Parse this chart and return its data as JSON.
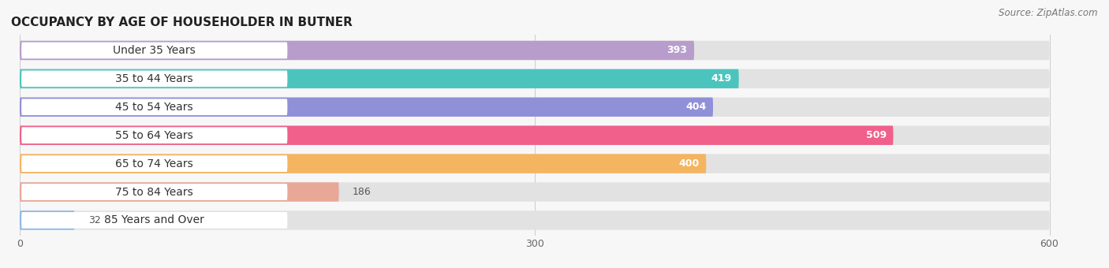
{
  "title": "OCCUPANCY BY AGE OF HOUSEHOLDER IN BUTNER",
  "source": "Source: ZipAtlas.com",
  "categories": [
    "Under 35 Years",
    "35 to 44 Years",
    "45 to 54 Years",
    "55 to 64 Years",
    "65 to 74 Years",
    "75 to 84 Years",
    "85 Years and Over"
  ],
  "values": [
    393,
    419,
    404,
    509,
    400,
    186,
    32
  ],
  "bar_colors": [
    "#b89dcc",
    "#4cc4be",
    "#9090d8",
    "#f0608a",
    "#f5b460",
    "#e8a898",
    "#90b8e8"
  ],
  "xlim": [
    -10,
    620
  ],
  "xlim_display": [
    0,
    600
  ],
  "xticks": [
    0,
    300,
    600
  ],
  "background_color": "#f7f7f7",
  "bar_background_color": "#e2e2e2",
  "title_fontsize": 11,
  "source_fontsize": 8.5,
  "label_fontsize": 10,
  "value_fontsize": 9,
  "bar_height": 0.68,
  "bar_gap": 1.0
}
